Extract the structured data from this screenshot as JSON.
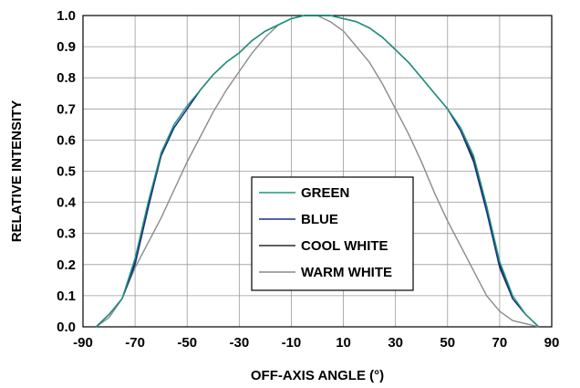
{
  "chart_data": {
    "type": "line",
    "title": "",
    "xlabel": "OFF-AXIS ANGLE (°)",
    "ylabel": "RELATIVE INTENSITY",
    "xlim": [
      -90,
      90
    ],
    "ylim": [
      0.0,
      1.0
    ],
    "xticks": [
      "-90",
      "-70",
      "-50",
      "-30",
      "-10",
      "10",
      "30",
      "50",
      "70",
      "90"
    ],
    "yticks": [
      "0.0",
      "0.1",
      "0.2",
      "0.3",
      "0.4",
      "0.5",
      "0.6",
      "0.7",
      "0.8",
      "0.9",
      "1.0"
    ],
    "grid": true,
    "legend_position": "center",
    "series": [
      {
        "name": "GREEN",
        "color": "#1a9a7a",
        "x": [
          -85,
          -80,
          -75,
          -70,
          -65,
          -60,
          -55,
          -50,
          -45,
          -40,
          -35,
          -30,
          -25,
          -20,
          -15,
          -10,
          -5,
          0,
          5,
          10,
          15,
          20,
          25,
          30,
          35,
          40,
          45,
          50,
          55,
          60,
          65,
          70,
          75,
          80,
          85
        ],
        "y": [
          0.0,
          0.04,
          0.09,
          0.22,
          0.4,
          0.56,
          0.65,
          0.71,
          0.76,
          0.81,
          0.85,
          0.88,
          0.92,
          0.95,
          0.97,
          0.99,
          1.0,
          1.0,
          1.0,
          0.99,
          0.98,
          0.96,
          0.93,
          0.89,
          0.85,
          0.8,
          0.75,
          0.7,
          0.64,
          0.55,
          0.39,
          0.21,
          0.1,
          0.04,
          0.0
        ]
      },
      {
        "name": "BLUE",
        "color": "#1e2d8e",
        "x": [
          -85,
          -80,
          -75,
          -70,
          -65,
          -60,
          -55,
          -50,
          -45,
          -40,
          -35,
          -30,
          -25,
          -20,
          -15,
          -10,
          -5,
          0,
          5,
          10,
          15,
          20,
          25,
          30,
          35,
          40,
          45,
          50,
          55,
          60,
          65,
          70,
          75,
          80,
          85
        ],
        "y": [
          0.0,
          0.04,
          0.09,
          0.2,
          0.38,
          0.55,
          0.64,
          0.7,
          0.76,
          0.81,
          0.85,
          0.88,
          0.92,
          0.95,
          0.97,
          0.99,
          1.0,
          1.0,
          1.0,
          0.99,
          0.98,
          0.96,
          0.93,
          0.89,
          0.85,
          0.8,
          0.75,
          0.7,
          0.63,
          0.53,
          0.37,
          0.19,
          0.09,
          0.04,
          0.0
        ]
      },
      {
        "name": "COOL WHITE",
        "color": "#2b2b2b",
        "x": [
          -85,
          -80,
          -75,
          -70,
          -65,
          -60,
          -55,
          -50,
          -45,
          -40,
          -35,
          -30,
          -25,
          -20,
          -15,
          -10,
          -5,
          0,
          5,
          10,
          15,
          20,
          25,
          30,
          35,
          40,
          45,
          50,
          55,
          60,
          65,
          70,
          75,
          80,
          85
        ],
        "y": [
          0.0,
          0.04,
          0.09,
          0.21,
          0.39,
          0.55,
          0.64,
          0.7,
          0.76,
          0.81,
          0.85,
          0.88,
          0.92,
          0.95,
          0.97,
          0.99,
          1.0,
          1.0,
          1.0,
          0.99,
          0.98,
          0.96,
          0.93,
          0.89,
          0.85,
          0.8,
          0.75,
          0.7,
          0.63,
          0.54,
          0.38,
          0.2,
          0.09,
          0.04,
          0.0
        ]
      },
      {
        "name": "WARM WHITE",
        "color": "#8a8a8a",
        "x": [
          -85,
          -80,
          -75,
          -70,
          -65,
          -60,
          -55,
          -50,
          -45,
          -40,
          -35,
          -30,
          -25,
          -20,
          -15,
          -10,
          -5,
          0,
          5,
          10,
          15,
          20,
          25,
          30,
          35,
          40,
          45,
          50,
          55,
          60,
          65,
          70,
          75,
          80,
          85
        ],
        "y": [
          0.0,
          0.03,
          0.09,
          0.19,
          0.27,
          0.35,
          0.44,
          0.53,
          0.61,
          0.69,
          0.76,
          0.82,
          0.88,
          0.93,
          0.97,
          0.99,
          1.0,
          1.0,
          0.98,
          0.95,
          0.9,
          0.85,
          0.78,
          0.7,
          0.62,
          0.53,
          0.43,
          0.34,
          0.26,
          0.18,
          0.1,
          0.05,
          0.02,
          0.01,
          0.0
        ]
      }
    ]
  }
}
